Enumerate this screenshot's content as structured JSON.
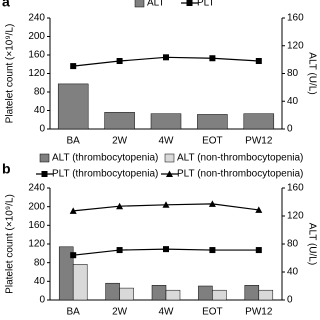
{
  "chart_data": [
    {
      "type": "combo",
      "panel": "a",
      "ylabel": "Platelet count (×10⁹/L)",
      "y2label": "ALT (U/L)",
      "categories": [
        "BA",
        "2W",
        "4W",
        "EOT",
        "PW12"
      ],
      "ylim": [
        0,
        240
      ],
      "yticks": [
        0,
        40,
        80,
        120,
        160,
        200,
        240
      ],
      "y2lim": [
        0,
        160
      ],
      "y2ticks": [
        0,
        40,
        80,
        120,
        160
      ],
      "series": [
        {
          "name": "ALT",
          "kind": "bar",
          "axis": "y2",
          "color": "#808080",
          "values": [
            65,
            24,
            22,
            21,
            22
          ]
        },
        {
          "name": "PLT",
          "kind": "line",
          "marker": "square",
          "color": "#000000",
          "values": [
            136,
            147,
            155,
            153,
            147
          ]
        }
      ]
    },
    {
      "type": "combo",
      "panel": "b",
      "ylabel": "Platelet count (×10⁹/L)",
      "y2label": "ALT (U/L)",
      "categories": [
        "BA",
        "2W",
        "4W",
        "EOT",
        "PW12"
      ],
      "ylim": [
        0,
        240
      ],
      "yticks": [
        0,
        40,
        80,
        120,
        160,
        200,
        240
      ],
      "y2lim": [
        0,
        160
      ],
      "y2ticks": [
        0,
        40,
        80,
        120,
        160
      ],
      "series": [
        {
          "name": "ALT (thrombocytopenia)",
          "kind": "bar",
          "axis": "y2",
          "color": "#7f7f7f",
          "values": [
            76,
            24,
            21,
            20,
            21
          ]
        },
        {
          "name": "ALT (non-thrombocytopenia)",
          "kind": "bar",
          "axis": "y2",
          "color": "#d9d9d9",
          "values": [
            51,
            17,
            14,
            14,
            14
          ]
        },
        {
          "name": "PLT (thrombocytopenia)",
          "kind": "line",
          "marker": "square",
          "color": "#000000",
          "values": [
            96,
            107,
            109,
            107,
            107
          ]
        },
        {
          "name": "PLT (non-thrombocytopenia)",
          "kind": "line",
          "marker": "triangle",
          "color": "#000000",
          "values": [
            191,
            201,
            204,
            206,
            193
          ]
        }
      ]
    }
  ]
}
